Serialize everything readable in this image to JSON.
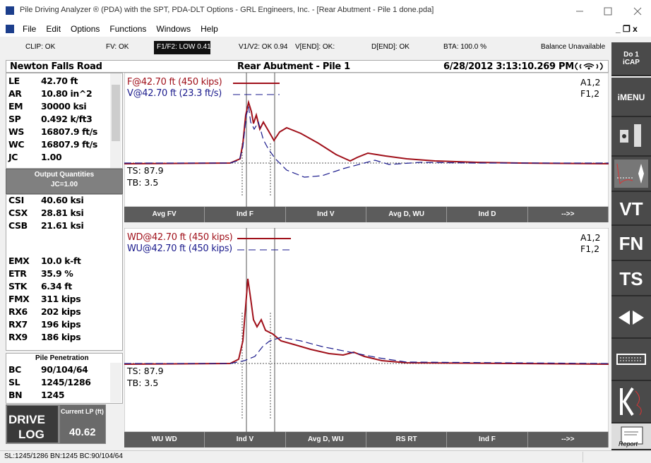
{
  "window": {
    "title": "Pile Driving Analyzer ® (PDA) with the SPT, PDA-DLT Options - GRL Engineers, Inc. - [Rear Abutment - Pile 1 done.pda]"
  },
  "menu": {
    "items": [
      "File",
      "Edit",
      "Options",
      "Functions",
      "Windows",
      "Help"
    ]
  },
  "status_strip": {
    "items": [
      "CLIP: OK",
      "FV: OK",
      "F1/F2: LOW 0.41",
      "V1/V2: OK 0.94",
      "V[END]: OK:",
      "D[END]: OK",
      "BTA: 100.0 %",
      "Balance Unavailable"
    ]
  },
  "header": {
    "left": "Newton Falls Road",
    "center": "Rear Abutment - Pile 1",
    "right": "6/28/2012 3:13:10.269 PM"
  },
  "left_panel": {
    "params": [
      [
        "LE",
        "42.70 ft"
      ],
      [
        "AR",
        "10.80 in^2"
      ],
      [
        "EM",
        "30000 ksi"
      ],
      [
        "SP",
        "0.492 k/ft3"
      ],
      [
        "WS",
        "16807.9 ft/s"
      ],
      [
        "WC",
        "16807.9 ft/s"
      ],
      [
        "JC",
        "1.00"
      ]
    ],
    "output_button": [
      "Output Quantities",
      "JC=1.00"
    ],
    "quantities_a": [
      [
        "CSI",
        "40.60 ksi"
      ],
      [
        "CSX",
        "28.81 ksi"
      ],
      [
        "CSB",
        "21.61 ksi"
      ]
    ],
    "quantities_b": [
      [
        "EMX",
        "10.0 k-ft"
      ],
      [
        "ETR",
        "35.9 %"
      ],
      [
        "STK",
        "6.34 ft"
      ],
      [
        "FMX",
        "311 kips"
      ],
      [
        "RX6",
        "202 kips"
      ],
      [
        "RX7",
        "196 kips"
      ],
      [
        "RX9",
        "186 kips"
      ]
    ],
    "penetration": {
      "title": "Pile Penetration",
      "rows": [
        [
          "BC",
          "90/104/64"
        ],
        [
          "SL",
          "1245/1286"
        ],
        [
          "BN",
          "1245"
        ]
      ]
    },
    "drive_log": [
      "DRIVE",
      "LOG"
    ],
    "current_lp": {
      "label": "Current LP (ft)",
      "value": "40.62"
    }
  },
  "charts": [
    {
      "legend": [
        "F@42.70 ft (450 kips)",
        "V@42.70 ft (23.3 ft/s)"
      ],
      "tags": [
        "A1,2",
        "F1,2"
      ],
      "notes": [
        "TS: 87.9",
        "TB: 3.5"
      ],
      "buttons": [
        "Avg FV",
        "Ind F",
        "Ind V",
        "Avg D, WU",
        "Ind D",
        "-->>"
      ]
    },
    {
      "legend": [
        "WD@42.70 ft (450 kips)",
        "WU@42.70 ft (450 kips)"
      ],
      "tags": [
        "A1,2",
        "F1,2"
      ],
      "notes": [
        "TS: 87.9",
        "TB: 3.5"
      ],
      "buttons": [
        "WU WD",
        "Ind V",
        "Avg D, WU",
        "RS RT",
        "Ind F",
        "-->>"
      ]
    }
  ],
  "side_buttons": {
    "do": [
      "Do 1",
      "iCAP"
    ],
    "labels": [
      "iMENU",
      "VT",
      "FN",
      "TS"
    ],
    "report": "Report"
  },
  "status_bar": {
    "text": "SL:1245/1286 BN:1245 BC:90/104/64"
  }
}
